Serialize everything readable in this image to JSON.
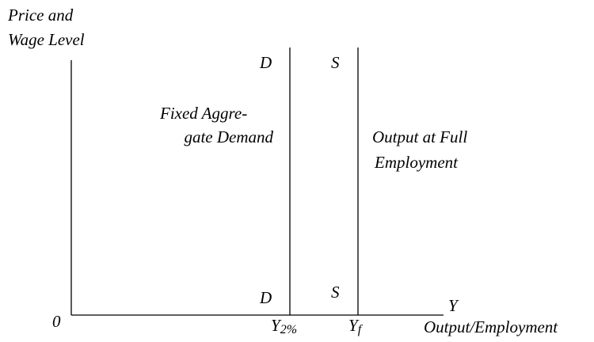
{
  "axes": {
    "y_label": [
      "Price and",
      "Wage Level"
    ],
    "x_symbol": "Y",
    "x_label": "Output/Employment",
    "origin": "0"
  },
  "curves": [
    {
      "top_label": "D",
      "bottom_label": "D",
      "description": [
        "Fixed Aggre-",
        "gate Demand"
      ],
      "axis_symbol": "Y",
      "axis_subscript": "2%"
    },
    {
      "top_label": "S",
      "bottom_label": "S",
      "description": [
        "Output at Full",
        "Employment"
      ],
      "axis_symbol": "Y",
      "axis_subscript": "f"
    }
  ]
}
